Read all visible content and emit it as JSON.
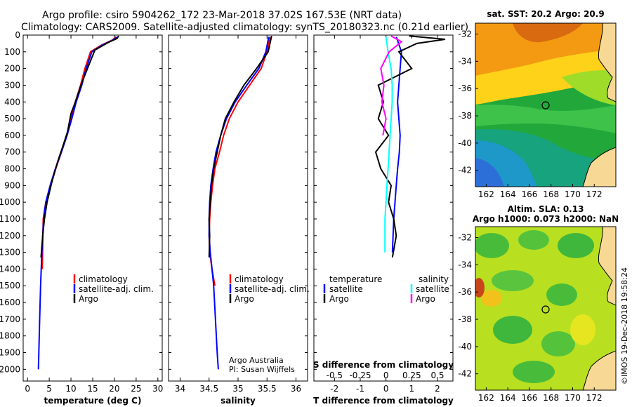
{
  "header": {
    "line1": "Argo profile: csiro 5904262_172 23-Mar-2018 37.02S 167.53E (NRT data)",
    "line2": "Climatology: CARS2009. Satellite-adjusted climatology: synTS_20180323.nc (0.21d earlier)"
  },
  "credits": {
    "org": "Argo Australia",
    "pi": "PI: Susan Wijffels",
    "stamp": "©IMOS 19-Dec-2018 19:58:24"
  },
  "colors": {
    "climatology": "#ff0000",
    "satellite": "#0000ff",
    "argo": "#000000",
    "sal_satellite": "#00ffff",
    "sal_argo": "#ff00ff"
  },
  "chart_data": [
    {
      "type": "line",
      "id": "temperature",
      "xlabel": "temperature (deg C)",
      "ylabel": "",
      "xlim": [
        -1,
        31
      ],
      "ylim": [
        2070,
        0
      ],
      "xticks": [
        "0",
        "5",
        "10",
        "15",
        "20",
        "25",
        "30"
      ],
      "yticks": [
        "0",
        "100",
        "200",
        "300",
        "400",
        "500",
        "600",
        "700",
        "800",
        "900",
        "1000",
        "1100",
        "1200",
        "1300",
        "1400",
        "1500",
        "1600",
        "1700",
        "1800",
        "1900",
        "2000"
      ],
      "legend": [
        "climatology",
        "satellite-adj. clim.",
        "Argo"
      ],
      "series": [
        {
          "name": "climatology",
          "color": "#ff0000",
          "x": [
            20.4,
            19.5,
            17.0,
            14.5,
            13.2,
            12.2,
            11.0,
            10.0,
            9.0,
            7.8,
            6.5,
            5.3,
            4.2,
            3.6,
            3.4
          ],
          "y": [
            10,
            30,
            60,
            100,
            200,
            300,
            400,
            500,
            600,
            700,
            800,
            900,
            1000,
            1100,
            1400
          ]
        },
        {
          "name": "satellite-adj. clim.",
          "color": "#0000ff",
          "x": [
            20.8,
            19.6,
            17.2,
            14.8,
            13.5,
            12.5,
            11.2,
            10.2,
            9.1,
            7.8,
            6.4,
            5.2,
            4.2,
            3.7,
            3.3,
            3.0,
            2.8,
            2.6,
            2.5
          ],
          "y": [
            10,
            30,
            60,
            100,
            200,
            300,
            400,
            500,
            600,
            700,
            800,
            900,
            1000,
            1100,
            1300,
            1500,
            1700,
            1900,
            2000
          ]
        },
        {
          "name": "Argo",
          "color": "#000000",
          "x": [
            21.0,
            20.6,
            18.5,
            15.5,
            13.8,
            12.3,
            11.0,
            10.0,
            9.2,
            8.2,
            6.9,
            5.6,
            4.5,
            3.9,
            3.5,
            3.2,
            3.1
          ],
          "y": [
            5,
            20,
            45,
            90,
            200,
            300,
            400,
            470,
            580,
            660,
            760,
            880,
            1000,
            1100,
            1200,
            1300,
            1330
          ]
        }
      ]
    },
    {
      "type": "line",
      "id": "salinity",
      "xlabel": "salinity",
      "xlim": [
        33.8,
        36.2
      ],
      "ylim": [
        2070,
        0
      ],
      "xticks": [
        "34",
        "34.5",
        "35",
        "35.5",
        "36"
      ],
      "legend": [
        "climatology",
        "satellite-adj. clim.",
        "Argo"
      ],
      "series": [
        {
          "name": "climatology",
          "color": "#ff0000",
          "x": [
            35.55,
            35.5,
            35.4,
            35.2,
            35.0,
            34.85,
            34.75,
            34.68,
            34.6,
            34.56,
            34.53,
            34.51,
            34.5,
            34.51,
            34.55,
            34.6
          ],
          "y": [
            10,
            100,
            200,
            300,
            400,
            500,
            600,
            700,
            800,
            900,
            1000,
            1100,
            1200,
            1300,
            1400,
            1500
          ]
        },
        {
          "name": "satellite-adj. clim.",
          "color": "#0000ff",
          "x": [
            35.53,
            35.48,
            35.36,
            35.15,
            34.95,
            34.8,
            34.7,
            34.62,
            34.57,
            34.53,
            34.51,
            34.5,
            34.5,
            34.52,
            34.55,
            34.58,
            34.61,
            34.64,
            34.66
          ],
          "y": [
            10,
            100,
            200,
            300,
            400,
            500,
            600,
            700,
            800,
            900,
            1000,
            1100,
            1200,
            1300,
            1400,
            1500,
            1700,
            1900,
            2000
          ]
        },
        {
          "name": "Argo",
          "color": "#000000",
          "x": [
            35.58,
            35.52,
            35.32,
            35.1,
            34.93,
            34.78,
            34.7,
            34.64,
            34.58,
            34.54,
            34.52,
            34.5,
            34.51,
            34.5
          ],
          "y": [
            5,
            100,
            200,
            300,
            400,
            500,
            600,
            700,
            800,
            900,
            1000,
            1100,
            1200,
            1330
          ]
        }
      ]
    },
    {
      "type": "line",
      "id": "difference",
      "xlabel": "T difference from climatology",
      "xlabel2": "S difference from climatology",
      "xlim": [
        -2.8,
        2.6
      ],
      "ylim": [
        2070,
        0
      ],
      "xticks": [
        "-2",
        "-1",
        "0",
        "1",
        "2"
      ],
      "xticks2": [
        "-0.5",
        "-0.25",
        "0",
        "0.25",
        "0.5"
      ],
      "legend_titles": [
        "temperature",
        "salinity"
      ],
      "legend_left": [
        "satellite",
        "Argo"
      ],
      "legend_right": [
        "satellite",
        "Argo"
      ],
      "series": [
        {
          "name": "T satellite",
          "color": "#0000ff",
          "x": [
            0.4,
            0.6,
            0.55,
            0.5,
            0.45,
            0.5,
            0.55,
            0.52,
            0.45,
            0.4,
            0.35,
            0.3,
            0.25
          ],
          "y": [
            10,
            100,
            200,
            300,
            400,
            500,
            600,
            700,
            800,
            900,
            1000,
            1100,
            1300
          ]
        },
        {
          "name": "T Argo",
          "color": "#000000",
          "x": [
            0.9,
            2.3,
            1.2,
            0.5,
            1.0,
            -0.3,
            -0.1,
            -0.3,
            0.1,
            -0.4,
            -0.2,
            0.2,
            0.1,
            0.3,
            0.4,
            0.25
          ],
          "y": [
            5,
            25,
            50,
            100,
            200,
            300,
            400,
            500,
            600,
            700,
            800,
            900,
            1000,
            1100,
            1200,
            1330
          ]
        },
        {
          "name": "S satellite",
          "color": "#00ffff",
          "x": [
            0.0,
            0.02,
            0.05,
            0.06,
            0.06,
            0.05,
            0.04,
            0.03,
            0.02,
            0.01,
            0.0,
            -0.01,
            -0.01
          ],
          "y": [
            10,
            100,
            200,
            300,
            400,
            500,
            600,
            700,
            800,
            900,
            1000,
            1100,
            1300
          ]
        },
        {
          "name": "S Argo",
          "color": "#ff00ff",
          "x": [
            0.05,
            0.15,
            0.03,
            -0.05,
            -0.02,
            -0.04,
            0.0,
            -0.03
          ],
          "y": [
            5,
            40,
            100,
            200,
            300,
            400,
            500,
            600
          ]
        }
      ]
    }
  ],
  "maps": [
    {
      "id": "sst",
      "title": "sat. SST: 20.2  Argo: 20.9",
      "xticks": [
        "162",
        "164",
        "166",
        "168",
        "170",
        "172"
      ],
      "yticks": [
        "-32",
        "-34",
        "-36",
        "-38",
        "-40",
        "-42"
      ]
    },
    {
      "id": "sla",
      "title1": "Altim. SLA: 0.13",
      "title2": "Argo h1000: 0.073 h2000: NaN",
      "xticks": [
        "162",
        "164",
        "166",
        "168",
        "170",
        "172"
      ],
      "yticks": [
        "-32",
        "-34",
        "-36",
        "-38",
        "-40",
        "-42"
      ]
    }
  ]
}
